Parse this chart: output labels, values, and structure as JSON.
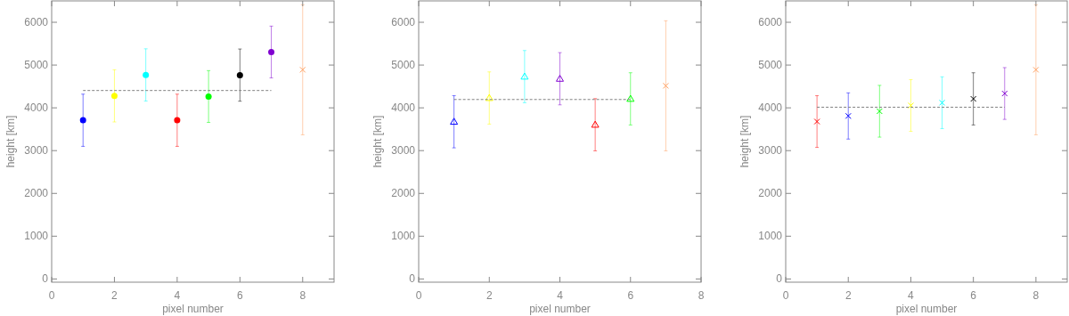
{
  "chart_data": [
    {
      "type": "scatter",
      "xlabel": "pixel number",
      "ylabel": "height [km]",
      "xlim": [
        0,
        9
      ],
      "xticks": [
        0,
        2,
        4,
        6,
        8
      ],
      "ylim": [
        -75,
        6500
      ],
      "yticks": [
        0,
        1000,
        2000,
        3000,
        4000,
        5000,
        6000
      ],
      "series": [
        {
          "marker": "circle",
          "x": [
            1,
            2,
            3,
            4,
            5,
            6,
            7
          ],
          "values": [
            3710,
            4280,
            4770,
            3710,
            4265,
            4765,
            5305
          ],
          "errors": [
            610,
            610,
            610,
            610,
            605,
            610,
            605
          ],
          "colors": [
            "#0000ff",
            "#ffff00",
            "#00ffff",
            "#ff0000",
            "#00ff00",
            "#000000",
            "#8000d0"
          ]
        },
        {
          "marker": "cross",
          "x": [
            8
          ],
          "values": [
            4890
          ],
          "errors": [
            1520
          ],
          "colors": [
            "#ffa060"
          ]
        },
        {
          "type": "line",
          "x": [
            1,
            7
          ],
          "values": [
            4405,
            4405
          ],
          "color": "#808080",
          "line_style": "dashed",
          "marker": "none"
        }
      ]
    },
    {
      "type": "scatter",
      "xlabel": "pixel number",
      "ylabel": "height [km]",
      "xlim": [
        0,
        8
      ],
      "xticks": [
        0,
        2,
        4,
        6,
        8
      ],
      "ylim": [
        -75,
        6500
      ],
      "yticks": [
        0,
        1000,
        2000,
        3000,
        4000,
        5000,
        6000
      ],
      "series": [
        {
          "marker": "triangle",
          "x": [
            1,
            2,
            3,
            4,
            5,
            6
          ],
          "values": [
            3675,
            4230,
            4730,
            4680,
            3605,
            4210
          ],
          "errors": [
            610,
            610,
            610,
            610,
            610,
            610
          ],
          "colors": [
            "#0000ff",
            "#ffff00",
            "#00ffff",
            "#8000d0",
            "#ff0000",
            "#00ff00"
          ]
        },
        {
          "marker": "cross",
          "x": [
            7
          ],
          "values": [
            4515
          ],
          "errors": [
            1520
          ],
          "colors": [
            "#ffa060"
          ]
        },
        {
          "type": "line",
          "x": [
            1,
            6
          ],
          "values": [
            4195,
            4195
          ],
          "color": "#808080",
          "line_style": "dashed",
          "marker": "none"
        }
      ]
    },
    {
      "type": "scatter",
      "xlabel": "pixel number",
      "ylabel": "height [km]",
      "xlim": [
        0,
        9
      ],
      "xticks": [
        0,
        2,
        4,
        6,
        8
      ],
      "ylim": [
        -75,
        6500
      ],
      "yticks": [
        0,
        1000,
        2000,
        3000,
        4000,
        5000,
        6000
      ],
      "series": [
        {
          "marker": "cross",
          "x": [
            1,
            2,
            3,
            4,
            5,
            6,
            7,
            8
          ],
          "values": [
            3680,
            3810,
            3920,
            4055,
            4120,
            4210,
            4335,
            4890
          ],
          "errors": [
            605,
            540,
            605,
            605,
            605,
            610,
            605,
            1520
          ],
          "colors": [
            "#ff0000",
            "#0000ff",
            "#00ff00",
            "#ffff00",
            "#00ffff",
            "#000000",
            "#8000d0",
            "#ffa060"
          ]
        },
        {
          "type": "line",
          "x": [
            1,
            7
          ],
          "values": [
            4015,
            4015
          ],
          "color": "#808080",
          "line_style": "dashed",
          "marker": "none"
        }
      ]
    }
  ]
}
